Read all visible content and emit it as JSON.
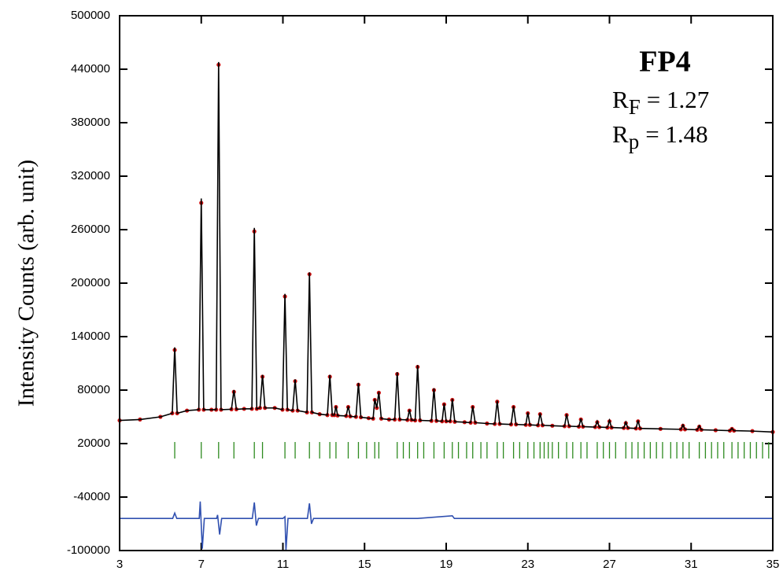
{
  "chart_data": {
    "type": "line",
    "ylabel": "Intensity Counts (arb. unit)",
    "annotations": [
      {
        "text": "FP4"
      },
      {
        "symbol": "R",
        "subscript": "F",
        "text": "= 1.27"
      },
      {
        "symbol": "R",
        "subscript": "p",
        "text": "= 1.48"
      }
    ],
    "xlim": [
      3,
      35
    ],
    "xticks": [
      3,
      7,
      11,
      15,
      19,
      23,
      27,
      31,
      35
    ],
    "ylim": [
      -100000,
      500000
    ],
    "yticks": [
      -100000,
      -40000,
      20000,
      80000,
      140000,
      200000,
      260000,
      320000,
      380000,
      440000,
      500000
    ],
    "series": [
      {
        "style": "markers",
        "color": "#cc1010",
        "x": [
          3,
          4,
          5,
          5.58,
          5.7,
          5.82,
          6.3,
          6.88,
          7.0,
          7.12,
          7.5,
          7.73,
          7.85,
          7.97,
          8.48,
          8.6,
          8.72,
          9.1,
          9.48,
          9.6,
          9.72,
          9.88,
          10.0,
          10.12,
          10.6,
          10.98,
          11.1,
          11.22,
          11.48,
          11.6,
          11.72,
          12.18,
          12.3,
          12.42,
          12.8,
          13.18,
          13.3,
          13.42,
          13.52,
          13.6,
          13.68,
          14.1,
          14.2,
          14.3,
          14.58,
          14.7,
          14.82,
          15.2,
          15.42,
          15.5,
          15.6,
          15.7,
          15.82,
          16.2,
          16.48,
          16.6,
          16.72,
          17.1,
          17.2,
          17.3,
          17.48,
          17.6,
          17.72,
          18.28,
          18.4,
          18.52,
          18.8,
          18.9,
          19.0,
          19.2,
          19.3,
          19.42,
          19.9,
          20.2,
          20.3,
          20.42,
          21.0,
          21.38,
          21.5,
          21.62,
          22.18,
          22.3,
          22.42,
          22.9,
          23.0,
          23.1,
          23.5,
          23.6,
          23.72,
          24.2,
          24.8,
          24.9,
          25.02,
          25.5,
          25.6,
          25.7,
          26.3,
          26.4,
          26.5,
          26.9,
          27.0,
          27.1,
          27.7,
          27.8,
          27.9,
          28.3,
          28.4,
          28.5,
          29.5,
          30.5,
          30.6,
          30.7,
          31.3,
          31.4,
          31.5,
          32.2,
          32.9,
          33.0,
          33.1,
          34,
          35
        ],
        "values": [
          46000,
          47000,
          50000,
          54000,
          125000,
          54000,
          57000,
          58000,
          290000,
          58000,
          58000,
          58000,
          445000,
          58000,
          58500,
          78000,
          58500,
          59000,
          59000,
          258000,
          59000,
          60000,
          95000,
          60000,
          60000,
          58000,
          185000,
          58000,
          57000,
          90000,
          57000,
          55000,
          210000,
          55000,
          53000,
          52000,
          95000,
          52000,
          52000,
          61000,
          51500,
          51000,
          61000,
          50500,
          50000,
          86000,
          49500,
          48500,
          48000,
          69000,
          60000,
          77000,
          48000,
          47000,
          47000,
          98000,
          47000,
          46500,
          57000,
          46500,
          46000,
          106000,
          46000,
          45500,
          80000,
          45500,
          45000,
          64000,
          45000,
          45000,
          69000,
          44500,
          44000,
          43500,
          61000,
          43500,
          42500,
          42000,
          67000,
          42000,
          41500,
          61000,
          41500,
          41000,
          54000,
          41000,
          40500,
          53000,
          40500,
          40000,
          39500,
          52000,
          39500,
          39000,
          47000,
          39000,
          38500,
          44000,
          38500,
          38000,
          45000,
          38000,
          37500,
          43000,
          37500,
          37000,
          45000,
          37000,
          36500,
          36000,
          40000,
          36000,
          35500,
          39000,
          35500,
          35000,
          34500,
          36500,
          34500,
          34000,
          33000
        ]
      },
      {
        "style": "line",
        "color": "#000000",
        "x": [
          3,
          4,
          5,
          5.58,
          5.7,
          5.82,
          6.3,
          6.88,
          7.0,
          7.12,
          7.5,
          7.73,
          7.85,
          7.97,
          8.48,
          8.6,
          8.72,
          9.1,
          9.48,
          9.6,
          9.72,
          9.88,
          10.0,
          10.12,
          10.6,
          10.98,
          11.1,
          11.22,
          11.48,
          11.6,
          11.72,
          12.18,
          12.3,
          12.42,
          12.8,
          13.18,
          13.3,
          13.42,
          13.52,
          13.6,
          13.68,
          14.1,
          14.2,
          14.3,
          14.58,
          14.7,
          14.82,
          15.2,
          15.42,
          15.5,
          15.6,
          15.7,
          15.82,
          16.2,
          16.48,
          16.6,
          16.72,
          17.1,
          17.2,
          17.3,
          17.48,
          17.6,
          17.72,
          18.28,
          18.4,
          18.52,
          18.8,
          18.9,
          19.0,
          19.2,
          19.3,
          19.42,
          19.9,
          20.2,
          20.3,
          20.42,
          21.0,
          21.38,
          21.5,
          21.62,
          22.18,
          22.3,
          22.42,
          22.9,
          23.0,
          23.1,
          23.5,
          23.6,
          23.72,
          24.2,
          24.8,
          24.9,
          25.02,
          25.5,
          25.6,
          25.7,
          26.3,
          26.4,
          26.5,
          26.9,
          27.0,
          27.1,
          27.7,
          27.8,
          27.9,
          28.3,
          28.4,
          28.5,
          29.5,
          30.5,
          30.6,
          30.7,
          31.3,
          31.4,
          31.5,
          32.2,
          32.9,
          33.0,
          33.1,
          34,
          35
        ],
        "values": [
          46000,
          47000,
          50000,
          54000,
          128000,
          54000,
          57000,
          58000,
          295000,
          58000,
          58000,
          58000,
          448000,
          58000,
          58500,
          80000,
          58500,
          59000,
          59000,
          262000,
          59000,
          60000,
          97000,
          60000,
          60000,
          58000,
          188000,
          58000,
          57000,
          92000,
          57000,
          55000,
          212000,
          55000,
          53000,
          52000,
          97000,
          52000,
          52000,
          62000,
          51500,
          51000,
          62000,
          50500,
          50000,
          88000,
          49500,
          48500,
          48000,
          70000,
          60000,
          78000,
          48000,
          47000,
          47000,
          100000,
          47000,
          46500,
          58000,
          46500,
          46000,
          108000,
          46000,
          45500,
          82000,
          45500,
          45000,
          65000,
          45000,
          45000,
          70000,
          44500,
          44000,
          43500,
          62000,
          43500,
          42500,
          42000,
          68000,
          42000,
          41500,
          62000,
          41500,
          41000,
          55000,
          41000,
          40500,
          54000,
          40500,
          40000,
          39500,
          53000,
          39500,
          39000,
          48000,
          39000,
          38500,
          45000,
          38500,
          38000,
          46000,
          38000,
          37500,
          44000,
          37500,
          37000,
          46000,
          37000,
          36500,
          36000,
          41000,
          36000,
          35500,
          40000,
          35500,
          35000,
          34500,
          37000,
          34500,
          34000,
          33000
        ]
      },
      {
        "style": "ticks",
        "color": "#2e8b20",
        "x": [
          5.7,
          7.0,
          7.85,
          8.6,
          9.6,
          10.0,
          11.1,
          11.6,
          12.3,
          12.8,
          13.3,
          13.6,
          14.2,
          14.7,
          15.1,
          15.5,
          15.7,
          16.6,
          16.9,
          17.2,
          17.6,
          17.9,
          18.4,
          18.9,
          19.3,
          19.6,
          20.0,
          20.3,
          20.7,
          21.0,
          21.5,
          21.8,
          22.3,
          22.6,
          23.0,
          23.3,
          23.6,
          23.8,
          24.0,
          24.2,
          24.5,
          24.9,
          25.2,
          25.6,
          25.9,
          26.4,
          26.7,
          27.0,
          27.3,
          27.8,
          28.1,
          28.4,
          28.7,
          29.0,
          29.3,
          29.6,
          30.0,
          30.3,
          30.6,
          30.9,
          31.4,
          31.7,
          32.0,
          32.3,
          32.6,
          33.0,
          33.3,
          33.6,
          33.9,
          34.2,
          34.5,
          34.8
        ]
      },
      {
        "style": "line",
        "color": "#3050b0",
        "x": [
          3,
          5.6,
          5.7,
          5.8,
          6.9,
          6.95,
          7.05,
          7.15,
          7.75,
          7.8,
          7.9,
          8.0,
          9.5,
          9.6,
          9.7,
          9.8,
          11.0,
          11.1,
          11.15,
          11.25,
          12.2,
          12.3,
          12.4,
          12.5,
          17.6,
          19.3,
          19.4,
          35
        ],
        "values": [
          -64000,
          -64000,
          -58000,
          -64000,
          -64000,
          -45000,
          -98000,
          -64000,
          -64000,
          -60000,
          -82000,
          -64000,
          -64000,
          -46000,
          -72000,
          -64000,
          -64000,
          -62000,
          -100000,
          -64000,
          -64000,
          -47000,
          -70000,
          -64000,
          -64000,
          -61000,
          -64000,
          -64000
        ]
      }
    ]
  }
}
